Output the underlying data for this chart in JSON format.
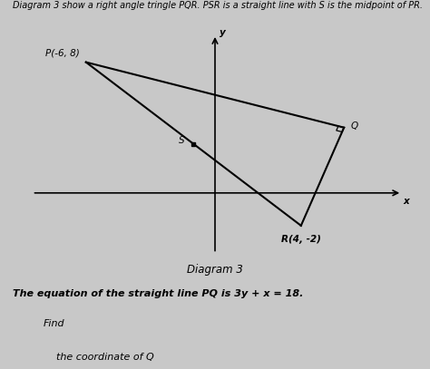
{
  "title_text": "Diagram 3 show a right angle tringle PQR. PSR is a straight line with S is the midpoint of PR.",
  "diagram_label": "Diagram 3",
  "equation_text": "The equation of the straight line PQ is 3y + x = 18.",
  "find_text": "Find",
  "coord_text": "the coordinate of Q",
  "P": [
    -6,
    8
  ],
  "Q": [
    6,
    4
  ],
  "R": [
    4,
    -2
  ],
  "S": [
    -1,
    3
  ],
  "P_label": "P(-6, 8)",
  "Q_label": "Q",
  "R_label": "R(4, -2)",
  "S_label": "S",
  "bg_color": "#c8c8c8",
  "line_color": "#000000",
  "axis_color": "#000000",
  "text_color": "#000000",
  "title_fontsize": 7.0,
  "label_fontsize": 7.5,
  "diagram_label_fontsize": 8.5,
  "eq_fontsize": 8.0,
  "xlim": [
    -9,
    9
  ],
  "ylim": [
    -4,
    10
  ]
}
